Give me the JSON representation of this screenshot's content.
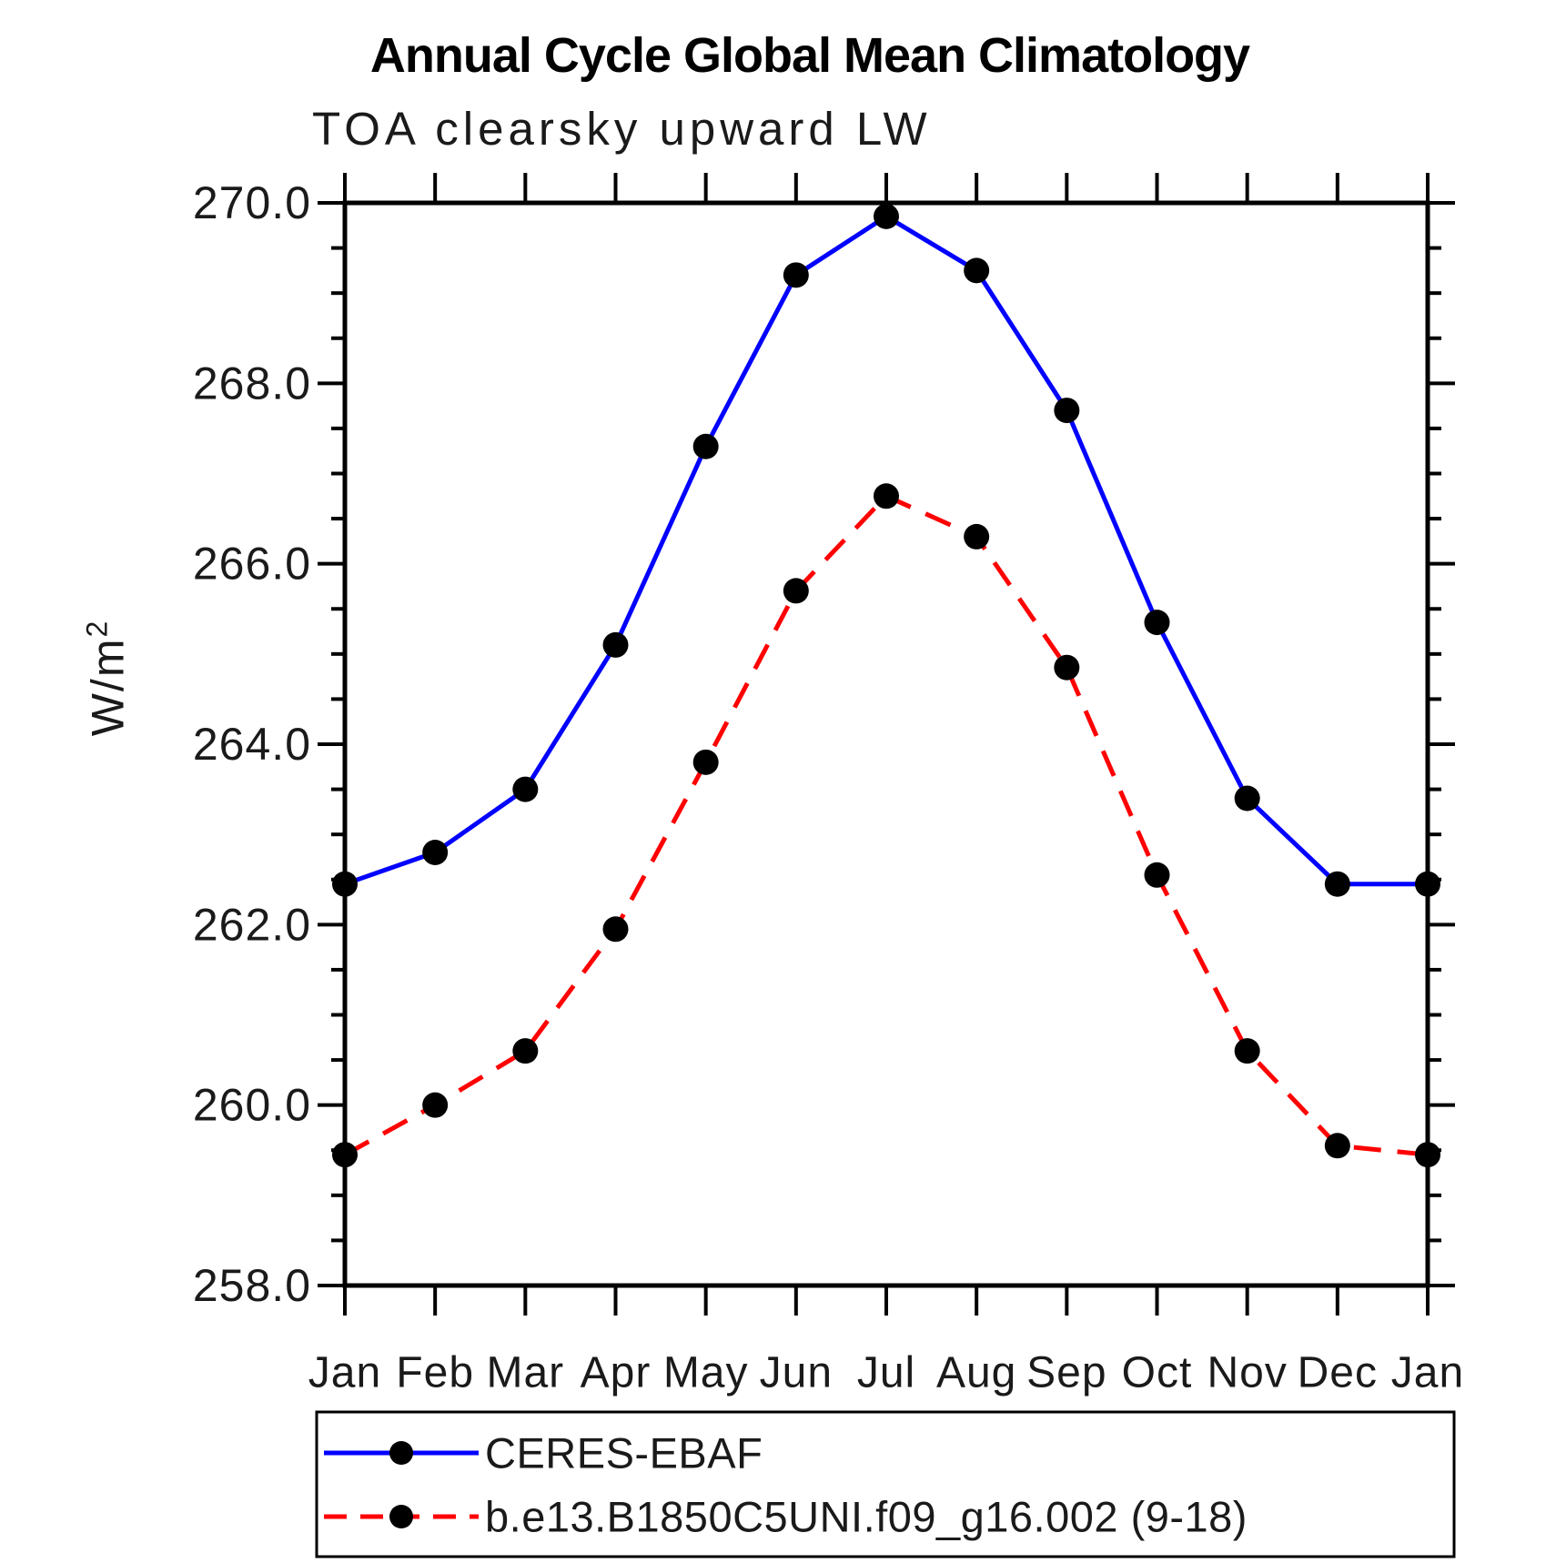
{
  "header": {
    "title": "Annual Cycle Global Mean Climatology",
    "subtitle": "TOA clearsky upward LW"
  },
  "y_axis": {
    "label": "W/m",
    "label_exponent": "2"
  },
  "chart_data": {
    "type": "line",
    "title": "Annual Cycle Global Mean Climatology",
    "subtitle": "TOA clearsky upward LW",
    "xlabel": "",
    "ylabel": "W/m2",
    "x_tick_labels": [
      "Jan",
      "Feb",
      "Mar",
      "Apr",
      "May",
      "Jun",
      "Jul",
      "Aug",
      "Sep",
      "Oct",
      "Nov",
      "Dec",
      "Jan"
    ],
    "ylim": [
      258.0,
      270.0
    ],
    "y_tick_values": [
      258,
      260,
      262,
      264,
      266,
      268,
      270
    ],
    "y_tick_labels": [
      "258.0",
      "260.0",
      "262.0",
      "264.0",
      "266.0",
      "268.0",
      "270.0"
    ],
    "y_minor_step": 0.5,
    "grid": false,
    "legend_position": "bottom",
    "frame_color": "#000000",
    "marker_color": "#000000",
    "series": [
      {
        "name": "CERES-EBAF",
        "color": "#0000ff",
        "line_style": "solid",
        "marker": "circle",
        "values": [
          262.45,
          262.8,
          263.5,
          265.1,
          267.3,
          269.2,
          269.85,
          269.25,
          267.7,
          265.35,
          263.4,
          262.45,
          262.45
        ]
      },
      {
        "name": "b.e13.B1850C5UNI.f09_g16.002 (9-18)",
        "color": "#ff0000",
        "line_style": "dashed",
        "marker": "circle",
        "values": [
          259.45,
          260.0,
          260.6,
          261.95,
          263.8,
          265.7,
          266.75,
          266.3,
          264.85,
          262.55,
          260.6,
          259.55,
          259.45
        ]
      }
    ]
  }
}
